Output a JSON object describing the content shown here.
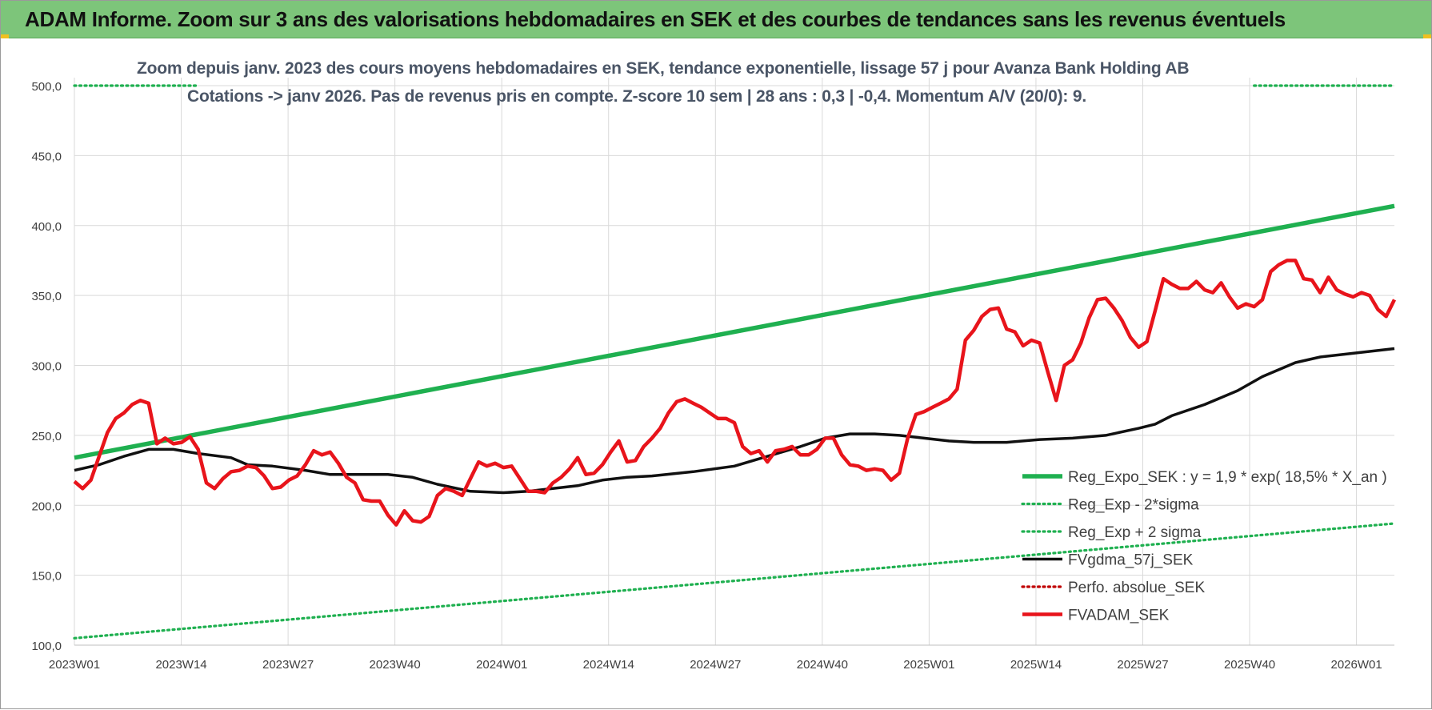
{
  "banner": {
    "title": "ADAM Informe. Zoom sur 3 ans des valorisations hebdomadaires en SEK et des courbes de tendances sans les revenus éventuels"
  },
  "colors": {
    "banner": "#7dc57a",
    "green": "#1fb050",
    "black": "#111111",
    "red": "#e8141b",
    "darkred": "#c00000",
    "grid": "#d9d9d9",
    "axis_text": "#404040"
  },
  "chart_data": {
    "type": "line",
    "title": "Zoom depuis janv. 2023 des cours moyens hebdomadaires en SEK, tendance exponentielle, lissage 57 j pour Avanza Bank Holding AB",
    "subtitle": "Cotations -> janv 2026. Pas de revenus pris en compte. Z-score 10 sem | 28 ans : 0,3 | -0,4. Momentum A/V (20/0): 9.",
    "ylim": [
      100,
      500
    ],
    "yticks": [
      "100,0",
      "150,0",
      "200,0",
      "250,0",
      "300,0",
      "350,0",
      "400,0",
      "450,0",
      "500,0"
    ],
    "x_tick_labels": [
      "2023W01",
      "2023W14",
      "2023W27",
      "2023W40",
      "2024W01",
      "2024W14",
      "2024W27",
      "2024W40",
      "2025W01",
      "2025W14",
      "2025W27",
      "2025W40",
      "2026W01"
    ],
    "grid": true,
    "legend_position": "bottom-right",
    "series": [
      {
        "name": "Reg_Expo_SEK : y = 1,9 * exp( 18,5% * X_an )",
        "style": "solid",
        "color": "#1fb050",
        "points": [
          [
            0,
            234
          ],
          [
            160,
            414
          ]
        ]
      },
      {
        "name": "Reg_Exp - 2*sigma",
        "style": "dotted",
        "color": "#1fb050",
        "points": [
          [
            0,
            105
          ],
          [
            160,
            187
          ]
        ]
      },
      {
        "name": "Reg_Exp + 2 sigma",
        "style": "dotted",
        "color": "#1fb050",
        "points": [
          [
            0,
            500
          ],
          [
            15,
            500
          ],
          [
            143,
            500
          ],
          [
            160,
            500
          ]
        ]
      },
      {
        "name": "FVgdma_57j_SEK",
        "style": "solid",
        "color": "#111111",
        "points": [
          [
            0,
            225
          ],
          [
            3,
            229
          ],
          [
            6,
            235
          ],
          [
            9,
            240
          ],
          [
            12,
            240
          ],
          [
            15,
            237
          ],
          [
            19,
            234
          ],
          [
            21,
            229
          ],
          [
            24,
            228
          ],
          [
            28,
            225
          ],
          [
            31,
            222
          ],
          [
            35,
            222
          ],
          [
            38,
            222
          ],
          [
            41,
            220
          ],
          [
            44,
            215
          ],
          [
            48,
            210
          ],
          [
            52,
            209
          ],
          [
            55,
            210
          ],
          [
            58,
            212
          ],
          [
            61,
            214
          ],
          [
            64,
            218
          ],
          [
            67,
            220
          ],
          [
            70,
            221
          ],
          [
            75,
            224
          ],
          [
            80,
            228
          ],
          [
            84,
            235
          ],
          [
            88,
            242
          ],
          [
            91,
            248
          ],
          [
            94,
            251
          ],
          [
            97,
            251
          ],
          [
            100,
            250
          ],
          [
            103,
            248
          ],
          [
            106,
            246
          ],
          [
            109,
            245
          ],
          [
            113,
            245
          ],
          [
            117,
            247
          ],
          [
            121,
            248
          ],
          [
            125,
            250
          ],
          [
            129,
            255
          ],
          [
            131,
            258
          ],
          [
            133,
            264
          ],
          [
            137,
            272
          ],
          [
            141,
            282
          ],
          [
            144,
            292
          ],
          [
            148,
            302
          ],
          [
            151,
            306
          ],
          [
            154,
            308
          ],
          [
            157,
            310
          ],
          [
            160,
            312
          ]
        ]
      },
      {
        "name": "Perfo. absolue_SEK",
        "style": "dotted",
        "color": "#c00000",
        "points": []
      },
      {
        "name": "FVADAM_SEK",
        "style": "solid",
        "color": "#e8141b",
        "points": [
          [
            0,
            217
          ],
          [
            1,
            212
          ],
          [
            2,
            218
          ],
          [
            3,
            235
          ],
          [
            4,
            252
          ],
          [
            5,
            262
          ],
          [
            6,
            266
          ],
          [
            7,
            272
          ],
          [
            8,
            275
          ],
          [
            9,
            273
          ],
          [
            10,
            244
          ],
          [
            11,
            248
          ],
          [
            12,
            244
          ],
          [
            13,
            245
          ],
          [
            14,
            249
          ],
          [
            15,
            240
          ],
          [
            16,
            216
          ],
          [
            17,
            212
          ],
          [
            18,
            219
          ],
          [
            19,
            224
          ],
          [
            20,
            225
          ],
          [
            21,
            228
          ],
          [
            22,
            227
          ],
          [
            23,
            221
          ],
          [
            24,
            212
          ],
          [
            25,
            213
          ],
          [
            26,
            218
          ],
          [
            27,
            221
          ],
          [
            28,
            229
          ],
          [
            29,
            239
          ],
          [
            30,
            236
          ],
          [
            31,
            238
          ],
          [
            32,
            230
          ],
          [
            33,
            220
          ],
          [
            34,
            216
          ],
          [
            35,
            204
          ],
          [
            36,
            203
          ],
          [
            37,
            203
          ],
          [
            38,
            193
          ],
          [
            39,
            186
          ],
          [
            40,
            196
          ],
          [
            41,
            189
          ],
          [
            42,
            188
          ],
          [
            43,
            192
          ],
          [
            44,
            207
          ],
          [
            45,
            212
          ],
          [
            46,
            210
          ],
          [
            47,
            207
          ],
          [
            48,
            219
          ],
          [
            49,
            231
          ],
          [
            50,
            228
          ],
          [
            51,
            230
          ],
          [
            52,
            227
          ],
          [
            53,
            228
          ],
          [
            54,
            219
          ],
          [
            55,
            210
          ],
          [
            56,
            210
          ],
          [
            57,
            209
          ],
          [
            58,
            216
          ],
          [
            59,
            220
          ],
          [
            60,
            226
          ],
          [
            61,
            234
          ],
          [
            62,
            222
          ],
          [
            63,
            223
          ],
          [
            64,
            229
          ],
          [
            65,
            238
          ],
          [
            66,
            246
          ],
          [
            67,
            231
          ],
          [
            68,
            232
          ],
          [
            69,
            242
          ],
          [
            70,
            248
          ],
          [
            71,
            255
          ],
          [
            72,
            266
          ],
          [
            73,
            274
          ],
          [
            74,
            276
          ],
          [
            75,
            273
          ],
          [
            76,
            270
          ],
          [
            77,
            266
          ],
          [
            78,
            262
          ],
          [
            79,
            262
          ],
          [
            80,
            259
          ],
          [
            81,
            242
          ],
          [
            82,
            237
          ],
          [
            83,
            239
          ],
          [
            84,
            231
          ],
          [
            85,
            239
          ],
          [
            86,
            240
          ],
          [
            87,
            242
          ],
          [
            88,
            236
          ],
          [
            89,
            236
          ],
          [
            90,
            240
          ],
          [
            91,
            248
          ],
          [
            92,
            248
          ],
          [
            93,
            236
          ],
          [
            94,
            229
          ],
          [
            95,
            228
          ],
          [
            96,
            225
          ],
          [
            97,
            226
          ],
          [
            98,
            225
          ],
          [
            99,
            218
          ],
          [
            100,
            223
          ],
          [
            101,
            248
          ],
          [
            102,
            265
          ],
          [
            103,
            267
          ],
          [
            104,
            270
          ],
          [
            105,
            273
          ],
          [
            106,
            276
          ],
          [
            107,
            283
          ],
          [
            108,
            318
          ],
          [
            109,
            325
          ],
          [
            110,
            335
          ],
          [
            111,
            340
          ],
          [
            112,
            341
          ],
          [
            113,
            326
          ],
          [
            114,
            324
          ],
          [
            115,
            314
          ],
          [
            116,
            318
          ],
          [
            117,
            316
          ],
          [
            118,
            295
          ],
          [
            119,
            275
          ],
          [
            120,
            300
          ],
          [
            121,
            304
          ],
          [
            122,
            316
          ],
          [
            123,
            334
          ],
          [
            124,
            347
          ],
          [
            125,
            348
          ],
          [
            126,
            341
          ],
          [
            127,
            332
          ],
          [
            128,
            320
          ],
          [
            129,
            313
          ],
          [
            130,
            317
          ],
          [
            131,
            339
          ],
          [
            132,
            362
          ],
          [
            133,
            358
          ],
          [
            134,
            355
          ],
          [
            135,
            355
          ],
          [
            136,
            360
          ],
          [
            137,
            354
          ],
          [
            138,
            352
          ],
          [
            139,
            359
          ],
          [
            140,
            349
          ],
          [
            141,
            341
          ],
          [
            142,
            344
          ],
          [
            143,
            342
          ],
          [
            144,
            347
          ],
          [
            145,
            367
          ],
          [
            146,
            372
          ],
          [
            147,
            375
          ],
          [
            148,
            375
          ],
          [
            149,
            362
          ],
          [
            150,
            361
          ],
          [
            151,
            352
          ],
          [
            152,
            363
          ],
          [
            153,
            354
          ],
          [
            154,
            351
          ],
          [
            155,
            349
          ],
          [
            156,
            352
          ],
          [
            157,
            350
          ],
          [
            158,
            340
          ],
          [
            159,
            335
          ],
          [
            160,
            347
          ]
        ]
      }
    ]
  }
}
